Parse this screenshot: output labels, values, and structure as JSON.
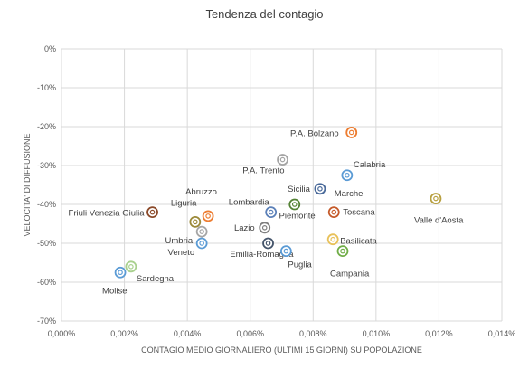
{
  "chart_data": {
    "type": "scatter",
    "title": "Tendenza del contagio",
    "xlabel": "CONTAGIO MEDIO GIORNALIERO (ULTIMI 15 GIORNI) SU POPOLAZIONE",
    "ylabel": "VELOCITA' DI DIFFUSIONE",
    "xlim": [
      0,
      0.014
    ],
    "ylim": [
      -70,
      0
    ],
    "x_ticks": [
      "0,000%",
      "0,002%",
      "0,004%",
      "0,006%",
      "0,008%",
      "0,010%",
      "0,012%",
      "0,014%"
    ],
    "y_ticks": [
      "0%",
      "-10%",
      "-20%",
      "-30%",
      "-40%",
      "-50%",
      "-60%",
      "-70%"
    ],
    "grid": true,
    "points": [
      {
        "label": "P.A. Bolzano",
        "x": 0.00922,
        "y": -21.5,
        "color": "#ed7d31"
      },
      {
        "label": "P.A. Trento",
        "x": 0.00703,
        "y": -28.5,
        "color": "#a5a5a5"
      },
      {
        "label": "Calabria",
        "x": 0.00908,
        "y": -32.5,
        "color": "#5b9bd5"
      },
      {
        "label": "Sicilia",
        "x": 0.00822,
        "y": -36.0,
        "color": "#4a6a9a"
      },
      {
        "label": "Marche",
        "x": 0.00741,
        "y": -40.0,
        "color": "#548235"
      },
      {
        "label": "Lombardia",
        "x": 0.00666,
        "y": -42.0,
        "color": "#5b80b8"
      },
      {
        "label": "Piemonte",
        "x": 0.00666,
        "y": -42.0,
        "color": "#5b80b8",
        "hidden_marker": true
      },
      {
        "label": "Toscana",
        "x": 0.00866,
        "y": -42.0,
        "color": "#c55a2a"
      },
      {
        "label": "Valle d'Aosta",
        "x": 0.0119,
        "y": -38.5,
        "color": "#b8a040"
      },
      {
        "label": "Abruzzo",
        "x": 0.00466,
        "y": -43.0,
        "color": "#ed7d31"
      },
      {
        "label": "Liguria",
        "x": 0.00425,
        "y": -44.5,
        "color": "#9c8a3a"
      },
      {
        "label": "Friuli Venezia Giulia",
        "x": 0.00289,
        "y": -42.0,
        "color": "#8b4a2a"
      },
      {
        "label": "Lazio",
        "x": 0.00646,
        "y": -46.0,
        "color": "#7f7f7f"
      },
      {
        "label": "Umbria",
        "x": 0.00446,
        "y": -47.0,
        "color": "#a5a5a5"
      },
      {
        "label": "Basilicata",
        "x": 0.00863,
        "y": -49.0,
        "color": "#e8c15a"
      },
      {
        "label": "Veneto",
        "x": 0.00446,
        "y": -50.0,
        "color": "#5b9bd5"
      },
      {
        "label": "Emilia-Romagna",
        "x": 0.00657,
        "y": -50.0,
        "color": "#44546a"
      },
      {
        "label": "Puglia",
        "x": 0.00714,
        "y": -52.0,
        "color": "#5b9bd5"
      },
      {
        "label": "Campania",
        "x": 0.00894,
        "y": -52.0,
        "color": "#70ad47"
      },
      {
        "label": "Sardegna",
        "x": 0.00221,
        "y": -56.0,
        "color": "#a9d18e"
      },
      {
        "label": "Molise",
        "x": 0.00187,
        "y": -57.5,
        "color": "#5b9bd5"
      }
    ]
  }
}
